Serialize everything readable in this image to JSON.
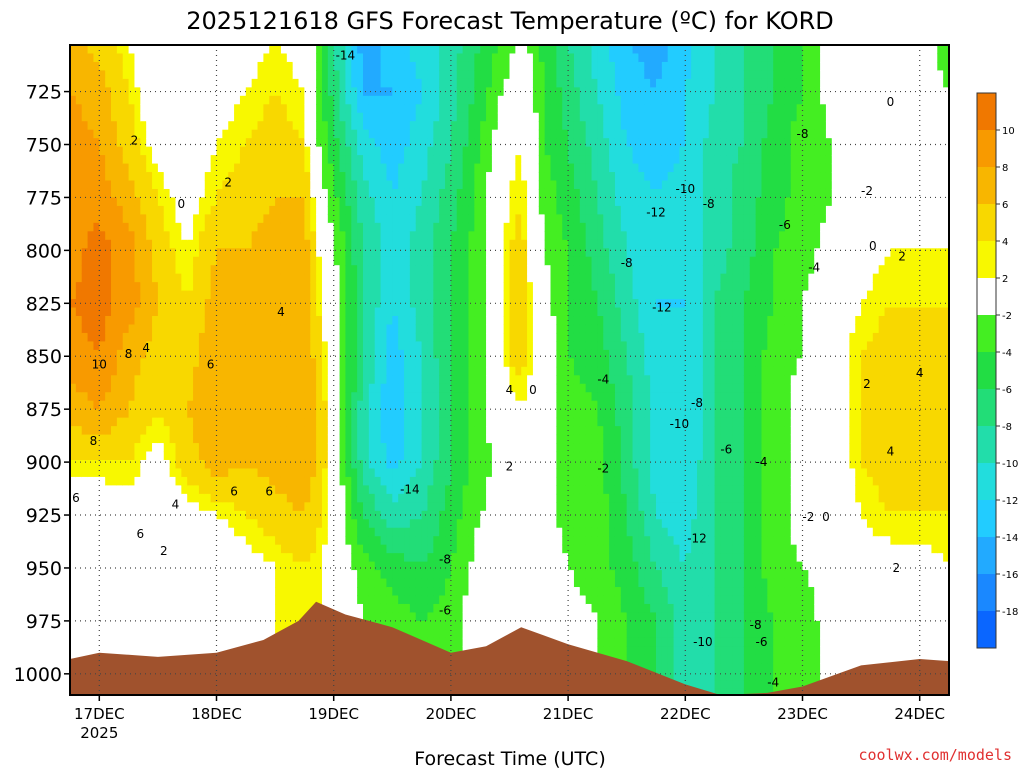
{
  "chart_data": {
    "type": "heatmap",
    "title": "2025121618 GFS Forecast Temperature (ºC) for KORD",
    "xlabel": "Forecast Time (UTC)",
    "ylabel": "",
    "credit": "coolwx.com/models",
    "units": "ºC",
    "x_ticks": [
      {
        "label": "17DEC",
        "sublabel": "2025",
        "day": 0
      },
      {
        "label": "18DEC",
        "day": 1
      },
      {
        "label": "19DEC",
        "day": 2
      },
      {
        "label": "20DEC",
        "day": 3
      },
      {
        "label": "21DEC",
        "day": 4
      },
      {
        "label": "22DEC",
        "day": 5
      },
      {
        "label": "23DEC",
        "day": 6
      },
      {
        "label": "24DEC",
        "day": 7
      }
    ],
    "xlim": [
      -0.25,
      7.25
    ],
    "y_ticks": [
      725,
      750,
      775,
      800,
      825,
      850,
      875,
      900,
      925,
      950,
      975,
      1000
    ],
    "ylim": [
      703,
      1010
    ],
    "colorbar": {
      "labels": [
        "10",
        "8",
        "6",
        "4",
        "2",
        "-2",
        "-4",
        "-6",
        "-8",
        "-10",
        "-12",
        "-14",
        "-16",
        "-18"
      ],
      "colors": [
        "#f07800",
        "#f89a00",
        "#f8b600",
        "#f8d800",
        "#f8f800",
        "#ffffff",
        "#44ee22",
        "#22dd44",
        "#22dd77",
        "#22ddaa",
        "#22dddd",
        "#22ccff",
        "#22aaff",
        "#1a88ff",
        "#0a66ff"
      ]
    },
    "surface_pressure": [
      {
        "day": -0.25,
        "p": 993
      },
      {
        "day": 0.0,
        "p": 990
      },
      {
        "day": 0.5,
        "p": 992
      },
      {
        "day": 1.0,
        "p": 990
      },
      {
        "day": 1.4,
        "p": 984
      },
      {
        "day": 1.7,
        "p": 975
      },
      {
        "day": 1.85,
        "p": 966
      },
      {
        "day": 2.1,
        "p": 972
      },
      {
        "day": 2.5,
        "p": 978
      },
      {
        "day": 3.0,
        "p": 990
      },
      {
        "day": 3.3,
        "p": 987
      },
      {
        "day": 3.6,
        "p": 978
      },
      {
        "day": 4.0,
        "p": 986
      },
      {
        "day": 4.5,
        "p": 994
      },
      {
        "day": 5.0,
        "p": 1005
      },
      {
        "day": 5.3,
        "p": 1010
      },
      {
        "day": 5.7,
        "p": 1009
      },
      {
        "day": 6.0,
        "p": 1006
      },
      {
        "day": 6.5,
        "p": 996
      },
      {
        "day": 7.0,
        "p": 993
      },
      {
        "day": 7.25,
        "p": 994
      }
    ],
    "temperature_columns": [
      {
        "day": -0.25,
        "t": [
          6,
          7,
          8,
          8,
          8,
          9,
          8,
          6,
          3,
          0,
          -1,
          -1
        ]
      },
      {
        "day": 0.0,
        "t": [
          4,
          6,
          7,
          8,
          10,
          10,
          9,
          7,
          3,
          0,
          -1,
          -1
        ]
      },
      {
        "day": 0.25,
        "t": [
          2,
          3,
          4,
          6,
          8,
          8,
          6,
          5,
          3,
          1,
          0,
          0
        ]
      },
      {
        "day": 0.5,
        "t": [
          -1,
          0,
          1,
          3,
          4,
          5,
          4,
          3,
          1,
          0,
          0,
          0
        ]
      },
      {
        "day": 0.75,
        "t": [
          -2,
          -1,
          0,
          1,
          2,
          3,
          4,
          5,
          4,
          1,
          0,
          0
        ]
      },
      {
        "day": 1.0,
        "t": [
          0,
          1,
          2,
          3,
          5,
          6,
          7,
          7,
          6,
          2,
          0,
          0
        ]
      },
      {
        "day": 1.25,
        "t": [
          1,
          2,
          3,
          4,
          5,
          6,
          6,
          6,
          5,
          3,
          1,
          1
        ]
      },
      {
        "day": 1.5,
        "t": [
          2,
          3,
          4,
          5,
          6,
          7,
          7,
          7,
          6,
          4,
          2,
          2
        ]
      },
      {
        "day": 1.75,
        "t": [
          1,
          2,
          3,
          5,
          6,
          7,
          7,
          7,
          7,
          5,
          3,
          3
        ]
      },
      {
        "day": 1.9,
        "t": [
          -5,
          -4,
          -3,
          -1,
          1,
          2,
          3,
          4,
          4,
          3,
          2,
          2
        ]
      },
      {
        "day": 2.25,
        "t": [
          -15,
          -14,
          -11,
          -9,
          -8,
          -8,
          -8,
          -9,
          -9,
          -6,
          -3,
          -2
        ]
      },
      {
        "day": 2.5,
        "t": [
          -13,
          -14,
          -13,
          -12,
          -11,
          -12,
          -13,
          -14,
          -13,
          -9,
          -5,
          -3
        ]
      },
      {
        "day": 2.75,
        "t": [
          -11,
          -12,
          -11,
          -10,
          -9,
          -9,
          -10,
          -10,
          -10,
          -8,
          -6,
          -4
        ]
      },
      {
        "day": 3.0,
        "t": [
          -9,
          -9,
          -8,
          -7,
          -6,
          -6,
          -6,
          -6,
          -6,
          -5,
          -4,
          -3
        ]
      },
      {
        "day": 3.25,
        "t": [
          -6,
          -5,
          -4,
          -3,
          -3,
          -3,
          -3,
          -3,
          -3,
          -2,
          -1,
          0
        ]
      },
      {
        "day": 3.5,
        "t": [
          -3,
          -1,
          1,
          2,
          3,
          3,
          3,
          1,
          0,
          -1,
          0,
          1
        ]
      },
      {
        "day": 3.6,
        "t": [
          -1,
          1,
          2,
          3,
          4,
          4,
          4,
          2,
          0,
          -1,
          1,
          2
        ]
      },
      {
        "day": 3.8,
        "t": [
          -5,
          -4,
          -4,
          -3,
          -2,
          -1,
          0,
          -1,
          -1,
          -1,
          0,
          1
        ]
      },
      {
        "day": 4.0,
        "t": [
          -8,
          -7,
          -6,
          -5,
          -4,
          -4,
          -4,
          -3,
          -3,
          -3,
          -2,
          -1
        ]
      },
      {
        "day": 4.25,
        "t": [
          -11,
          -10,
          -9,
          -8,
          -7,
          -6,
          -5,
          -4,
          -3,
          -3,
          -3,
          -2
        ]
      },
      {
        "day": 4.5,
        "t": [
          -14,
          -13,
          -12,
          -11,
          -10,
          -9,
          -8,
          -7,
          -7,
          -6,
          -5,
          -4
        ]
      },
      {
        "day": 4.75,
        "t": [
          -15,
          -14,
          -13,
          -12,
          -12,
          -12,
          -11,
          -11,
          -11,
          -10,
          -8,
          -6
        ]
      },
      {
        "day": 5.0,
        "t": [
          -13,
          -12,
          -12,
          -11,
          -11,
          -12,
          -12,
          -12,
          -12,
          -11,
          -10,
          -9
        ]
      },
      {
        "day": 5.25,
        "t": [
          -10,
          -10,
          -9,
          -9,
          -9,
          -8,
          -8,
          -8,
          -8,
          -8,
          -8,
          -8
        ]
      },
      {
        "day": 5.5,
        "t": [
          -8,
          -8,
          -8,
          -7,
          -7,
          -6,
          -6,
          -6,
          -6,
          -6,
          -6,
          -6
        ]
      },
      {
        "day": 5.75,
        "t": [
          -6,
          -6,
          -5,
          -5,
          -4,
          -4,
          -3,
          -3,
          -3,
          -3,
          -3,
          -4
        ]
      },
      {
        "day": 6.0,
        "t": [
          -4,
          -4,
          -3,
          -3,
          -3,
          -2,
          -2,
          -1,
          -1,
          -1,
          -2,
          -3
        ]
      },
      {
        "day": 6.25,
        "t": [
          -1,
          -1,
          -2,
          -2,
          -1,
          0,
          1,
          1,
          0,
          0,
          -1,
          -1
        ]
      },
      {
        "day": 6.5,
        "t": [
          0,
          0,
          1,
          0,
          1,
          2,
          3,
          3,
          3,
          2,
          1,
          0
        ]
      },
      {
        "day": 6.75,
        "t": [
          1,
          0,
          0,
          1,
          2,
          3,
          4,
          4,
          4,
          3,
          1,
          0
        ]
      },
      {
        "day": 7.0,
        "t": [
          -1,
          -1,
          0,
          1,
          2,
          3,
          4,
          4,
          4,
          3,
          1,
          0
        ]
      },
      {
        "day": 7.25,
        "t": [
          -3,
          -2,
          -1,
          1,
          2,
          3,
          3,
          3,
          3,
          3,
          2,
          1
        ]
      }
    ],
    "contour_labels": [
      {
        "text": "-14",
        "day": 2.1,
        "p": 708
      },
      {
        "text": "2",
        "day": 0.3,
        "p": 748
      },
      {
        "text": "2",
        "day": 1.1,
        "p": 768
      },
      {
        "text": "0",
        "day": 0.7,
        "p": 778
      },
      {
        "text": "4",
        "day": 1.55,
        "p": 829
      },
      {
        "text": "10",
        "day": 0.0,
        "p": 854
      },
      {
        "text": "8",
        "day": 0.25,
        "p": 849
      },
      {
        "text": "4",
        "day": 0.4,
        "p": 846
      },
      {
        "text": "6",
        "day": 0.95,
        "p": 854
      },
      {
        "text": "8",
        "day": -0.05,
        "p": 890
      },
      {
        "text": "6",
        "day": -0.2,
        "p": 917
      },
      {
        "text": "4",
        "day": 0.65,
        "p": 920
      },
      {
        "text": "6",
        "day": 0.35,
        "p": 934
      },
      {
        "text": "2",
        "day": 0.55,
        "p": 942
      },
      {
        "text": "6",
        "day": 1.15,
        "p": 914
      },
      {
        "text": "6",
        "day": 1.45,
        "p": 914
      },
      {
        "text": "-14",
        "day": 2.65,
        "p": 913
      },
      {
        "text": "-8",
        "day": 2.95,
        "p": 946
      },
      {
        "text": "-6",
        "day": 2.95,
        "p": 970
      },
      {
        "text": "4",
        "day": 3.5,
        "p": 866
      },
      {
        "text": "0",
        "day": 3.7,
        "p": 866
      },
      {
        "text": "2",
        "day": 3.5,
        "p": 902
      },
      {
        "text": "-4",
        "day": 4.3,
        "p": 861
      },
      {
        "text": "-2",
        "day": 4.3,
        "p": 903
      },
      {
        "text": "-8",
        "day": 4.5,
        "p": 806
      },
      {
        "text": "-12",
        "day": 4.75,
        "p": 782
      },
      {
        "text": "-10",
        "day": 5.0,
        "p": 771
      },
      {
        "text": "-8",
        "day": 5.2,
        "p": 778
      },
      {
        "text": "-8",
        "day": 6.0,
        "p": 745
      },
      {
        "text": "-6",
        "day": 5.85,
        "p": 788
      },
      {
        "text": "-2",
        "day": 6.55,
        "p": 772
      },
      {
        "text": "-4",
        "day": 6.1,
        "p": 808
      },
      {
        "text": "0",
        "day": 6.75,
        "p": 730
      },
      {
        "text": "0",
        "day": 6.6,
        "p": 798
      },
      {
        "text": "2",
        "day": 6.85,
        "p": 803
      },
      {
        "text": "-12",
        "day": 4.8,
        "p": 827
      },
      {
        "text": "-8",
        "day": 5.1,
        "p": 872
      },
      {
        "text": "-10",
        "day": 4.95,
        "p": 882
      },
      {
        "text": "-6",
        "day": 5.35,
        "p": 894
      },
      {
        "text": "-4",
        "day": 5.65,
        "p": 900
      },
      {
        "text": "-2",
        "day": 6.05,
        "p": 926
      },
      {
        "text": "0",
        "day": 6.2,
        "p": 926
      },
      {
        "text": "-12",
        "day": 5.1,
        "p": 936
      },
      {
        "text": "-10",
        "day": 5.15,
        "p": 985
      },
      {
        "text": "-8",
        "day": 5.6,
        "p": 977
      },
      {
        "text": "-6",
        "day": 5.65,
        "p": 985
      },
      {
        "text": "-4",
        "day": 5.75,
        "p": 1004
      },
      {
        "text": "2",
        "day": 6.55,
        "p": 863
      },
      {
        "text": "4",
        "day": 7.0,
        "p": 858
      },
      {
        "text": "4",
        "day": 6.75,
        "p": 895
      },
      {
        "text": "2",
        "day": 6.8,
        "p": 950
      }
    ]
  }
}
